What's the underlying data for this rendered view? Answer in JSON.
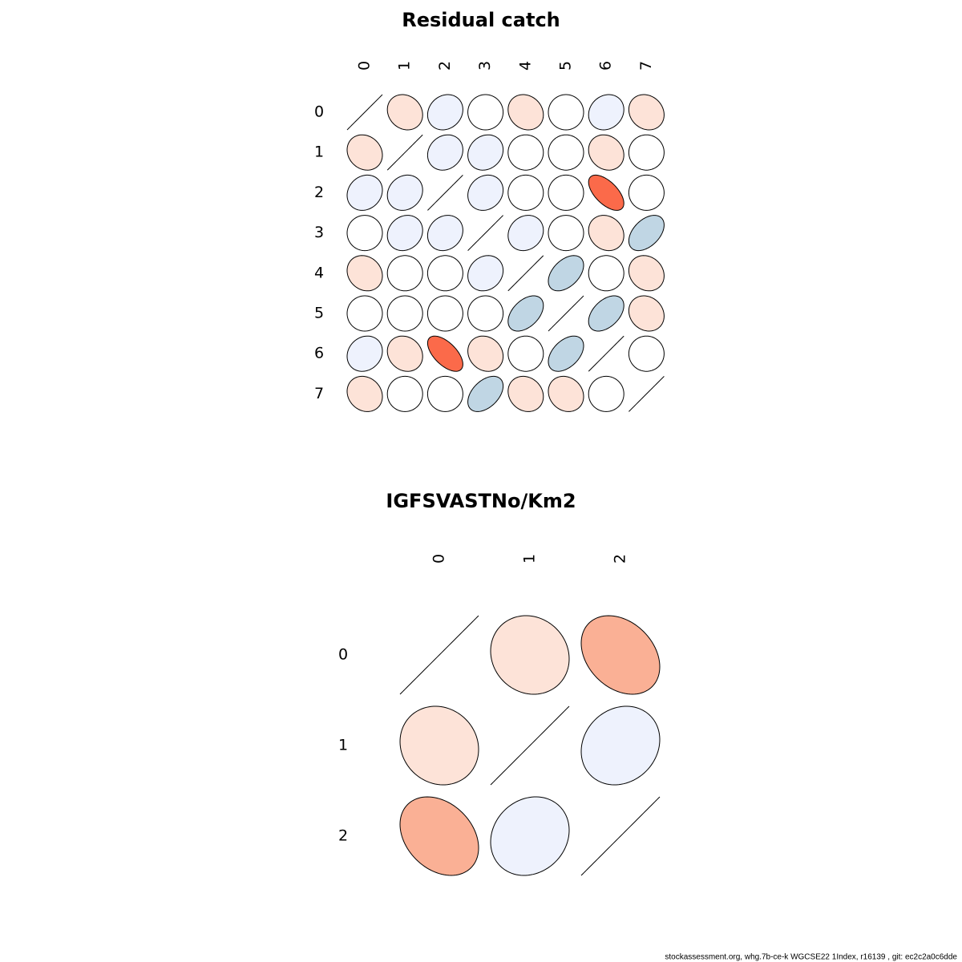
{
  "chart_data": [
    {
      "type": "corr-ellipse",
      "title": "Residual catch",
      "labels": [
        "0",
        "1",
        "2",
        "3",
        "4",
        "5",
        "6",
        "7"
      ],
      "values": [
        [
          1,
          -0.15,
          0.15,
          0,
          -0.15,
          0,
          0.15,
          -0.15
        ],
        [
          -0.15,
          1,
          0.15,
          0.15,
          0,
          0,
          -0.15,
          0
        ],
        [
          0.15,
          0.15,
          1,
          0.15,
          0,
          0,
          -0.6,
          0
        ],
        [
          0,
          0.15,
          0.15,
          1,
          0.15,
          0,
          -0.15,
          0.45
        ],
        [
          -0.15,
          0,
          0,
          0.15,
          1,
          0.45,
          0,
          -0.15
        ],
        [
          0,
          0,
          0,
          0,
          0.45,
          1,
          0.45,
          -0.15
        ],
        [
          0.15,
          -0.15,
          -0.6,
          -0.15,
          0,
          0.45,
          1,
          0
        ],
        [
          -0.15,
          0,
          0,
          0.45,
          -0.15,
          -0.15,
          0,
          1
        ]
      ],
      "colorscale": {
        "breaks": [
          -1,
          -0.5,
          -0.25,
          -0.1,
          0.1,
          0.3,
          0.6,
          1
        ],
        "colors": [
          "#fb6a4a",
          "#fab095",
          "#fde3d8",
          "#ffffff",
          "#eef2fd",
          "#c0d6e4",
          "#6baed6"
        ]
      }
    },
    {
      "type": "corr-ellipse",
      "title": "IGFSVASTNo/Km2",
      "labels": [
        "0",
        "1",
        "2"
      ],
      "values": [
        [
          1,
          -0.1,
          -0.3
        ],
        [
          -0.1,
          1,
          0.15
        ],
        [
          -0.3,
          0.15,
          1
        ]
      ],
      "colorscale": {
        "breaks": [
          -1,
          -0.5,
          -0.25,
          -0.1,
          0.1,
          0.3,
          0.6,
          1
        ],
        "colors": [
          "#fb6a4a",
          "#fab095",
          "#fde3d8",
          "#ffffff",
          "#eef2fd",
          "#c0d6e4",
          "#6baed6"
        ]
      }
    }
  ],
  "footer": "stockassessment.org, whg.7b-ce-k  WGCSE22  1Index, r16139 , git: ec2c2a0c6dde"
}
